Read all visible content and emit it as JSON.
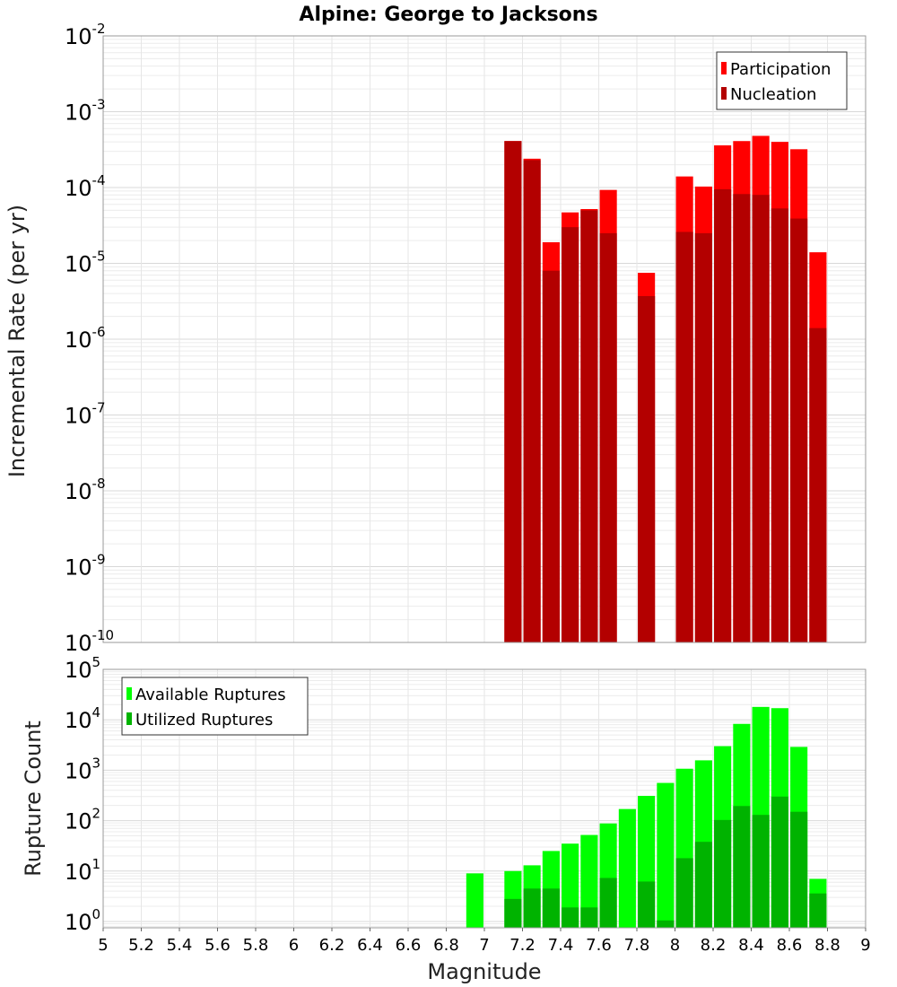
{
  "chart_data": [
    {
      "type": "bar",
      "panel": "top",
      "title": "Alpine: George to Jacksons",
      "xlabel": "Magnitude",
      "ylabel": "Incremental Rate (per yr)",
      "xlim": [
        5,
        9
      ],
      "ylim": [
        1e-10,
        0.01
      ],
      "yscale": "log",
      "bar_width": 0.09,
      "legend_position": "top-right",
      "grid": true,
      "series": [
        {
          "name": "Participation",
          "color": "#ff0000",
          "x": [
            7.15,
            7.25,
            7.35,
            7.45,
            7.55,
            7.65,
            7.85,
            8.05,
            8.15,
            8.25,
            8.35,
            8.45,
            8.55,
            8.65,
            8.75
          ],
          "values": [
            0.00041,
            0.00024,
            1.9e-05,
            4.7e-05,
            5.2e-05,
            9.3e-05,
            7.5e-06,
            0.00014,
            0.000103,
            0.00036,
            0.00041,
            0.00048,
            0.0004,
            0.00032,
            1.4e-05
          ]
        },
        {
          "name": "Nucleation",
          "color": "#b30000",
          "x": [
            7.15,
            7.25,
            7.35,
            7.45,
            7.55,
            7.65,
            7.85,
            8.05,
            8.15,
            8.25,
            8.35,
            8.45,
            8.55,
            8.65,
            8.75
          ],
          "values": [
            0.00041,
            0.00023,
            8e-06,
            3e-05,
            5e-05,
            2.5e-05,
            3.7e-06,
            2.6e-05,
            2.5e-05,
            9.5e-05,
            8.2e-05,
            8e-05,
            5.3e-05,
            3.9e-05,
            1.4e-06
          ]
        }
      ]
    },
    {
      "type": "bar",
      "panel": "bottom",
      "xlabel": "Magnitude",
      "ylabel": "Rupture Count",
      "xlim": [
        5,
        9
      ],
      "ylim": [
        0.75,
        100000.0
      ],
      "yscale": "log",
      "bar_width": 0.09,
      "legend_position": "top-left",
      "grid": true,
      "xticks": [
        "5",
        "5.2",
        "5.4",
        "5.6",
        "5.8",
        "6",
        "6.2",
        "6.4",
        "6.6",
        "6.8",
        "7",
        "7.2",
        "7.4",
        "7.6",
        "7.8",
        "8",
        "8.2",
        "8.4",
        "8.6",
        "8.8",
        "9"
      ],
      "series": [
        {
          "name": "Available Ruptures",
          "color": "#00ff00",
          "x": [
            6.95,
            7.15,
            7.25,
            7.35,
            7.45,
            7.55,
            7.65,
            7.75,
            7.85,
            7.95,
            8.05,
            8.15,
            8.25,
            8.35,
            8.45,
            8.55,
            8.65,
            8.75
          ],
          "values": [
            9,
            10,
            13,
            25,
            35,
            52,
            88,
            170,
            310,
            560,
            1070,
            1570,
            3000,
            8300,
            18000,
            17000,
            2900,
            7
          ]
        },
        {
          "name": "Utilized Ruptures",
          "color": "#00b300",
          "x": [
            7.15,
            7.25,
            7.35,
            7.45,
            7.55,
            7.65,
            7.85,
            7.95,
            8.05,
            8.15,
            8.25,
            8.35,
            8.45,
            8.55,
            8.65,
            8.75
          ],
          "values": [
            2.8,
            4.5,
            4.5,
            1.9,
            1.9,
            7.3,
            6.2,
            1.05,
            18,
            38,
            103,
            195,
            130,
            300,
            150,
            3.6
          ]
        }
      ]
    }
  ]
}
